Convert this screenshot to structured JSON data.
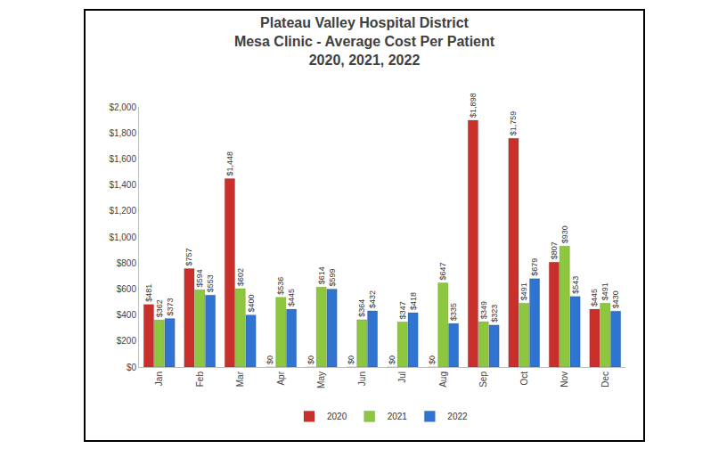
{
  "chart_data": {
    "type": "bar",
    "title": "Plateau Valley Hospital District\nMesa Clinic - Average Cost Per Patient\n2020, 2021, 2022",
    "categories": [
      "Jan",
      "Feb",
      "Mar",
      "Apr",
      "May",
      "Jun",
      "Jul",
      "Aug",
      "Sep",
      "Oct",
      "Nov",
      "Dec"
    ],
    "series": [
      {
        "name": "2020",
        "color": "#c9302c",
        "values": [
          481,
          757,
          1448,
          0,
          0,
          0,
          0,
          0,
          1898,
          1759,
          807,
          445
        ],
        "value_labels": [
          "$481",
          "$757",
          "$1,448",
          "$0",
          "$0",
          "$0",
          "$0",
          "$0",
          "$1,898",
          "$1,759",
          "$807",
          "$445"
        ]
      },
      {
        "name": "2021",
        "color": "#8dc63f",
        "values": [
          362,
          594,
          602,
          536,
          614,
          364,
          347,
          647,
          349,
          491,
          930,
          491
        ],
        "value_labels": [
          "$362",
          "$594",
          "$602",
          "$536",
          "$614",
          "$364",
          "$347",
          "$647",
          "$349",
          "$491",
          "$930",
          "$491"
        ]
      },
      {
        "name": "2022",
        "color": "#2f74d0",
        "values": [
          373,
          553,
          400,
          445,
          599,
          432,
          418,
          335,
          323,
          679,
          543,
          430
        ],
        "value_labels": [
          "$373",
          "$553",
          "$400",
          "$445",
          "$599",
          "$432",
          "$418",
          "$335",
          "$323",
          "$679",
          "$543",
          "$430"
        ]
      }
    ],
    "ylim": [
      0,
      2000
    ],
    "yticks": [
      {
        "value": 0,
        "label": "$0"
      },
      {
        "value": 200,
        "label": "$200"
      },
      {
        "value": 400,
        "label": "$400"
      },
      {
        "value": 600,
        "label": "$600"
      },
      {
        "value": 800,
        "label": "$800"
      },
      {
        "value": 1000,
        "label": "$1,000"
      },
      {
        "value": 1200,
        "label": "$1,200"
      },
      {
        "value": 1400,
        "label": "$1,400"
      },
      {
        "value": 1600,
        "label": "$1,600"
      },
      {
        "value": 1800,
        "label": "$1,800"
      },
      {
        "value": 2000,
        "label": "$2,000"
      }
    ],
    "grid": false,
    "legend": "bottom",
    "data_labels": true
  }
}
